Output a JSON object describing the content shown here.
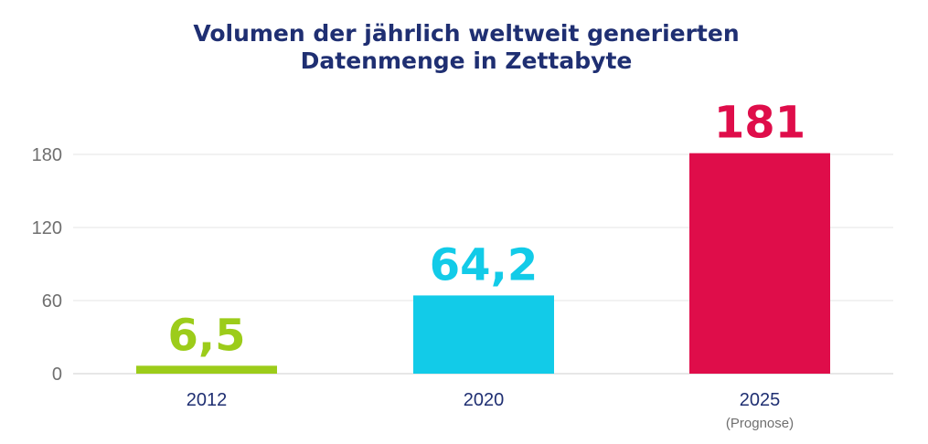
{
  "chart_data": {
    "type": "bar",
    "title_lines": [
      "Volumen der jährlich weltweit generierten",
      "Datenmenge in Zettabyte"
    ],
    "categories": [
      "2012",
      "2020",
      "2025"
    ],
    "category_notes": [
      "",
      "",
      "(Prognose)"
    ],
    "values": [
      6.5,
      64.2,
      181
    ],
    "value_labels": [
      "6,5",
      "64,2",
      "181"
    ],
    "colors": [
      "#9ccc1a",
      "#12cbe8",
      "#df0d4a"
    ],
    "yticks": [
      0,
      60,
      120,
      180
    ],
    "ylim": [
      0,
      180
    ],
    "grid": true,
    "xlabel": "",
    "ylabel": ""
  }
}
